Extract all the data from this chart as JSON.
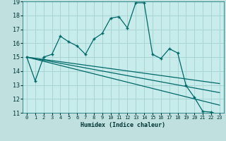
{
  "xlabel": "Humidex (Indice chaleur)",
  "bg_color": "#c0e0e0",
  "plot_bg_color": "#c8ecec",
  "grid_color": "#a8d4d4",
  "line_color": "#006868",
  "xlim": [
    -0.5,
    23.5
  ],
  "ylim": [
    11,
    19
  ],
  "xticks": [
    0,
    1,
    2,
    3,
    4,
    5,
    6,
    7,
    8,
    9,
    10,
    11,
    12,
    13,
    14,
    15,
    16,
    17,
    18,
    19,
    20,
    21,
    22,
    23
  ],
  "yticks": [
    11,
    12,
    13,
    14,
    15,
    16,
    17,
    18,
    19
  ],
  "main_x": [
    0,
    1,
    2,
    3,
    4,
    5,
    6,
    7,
    8,
    9,
    10,
    11,
    12,
    13,
    14,
    15,
    16,
    17,
    18,
    19,
    20,
    21,
    22,
    23
  ],
  "main_y": [
    15.0,
    13.3,
    15.0,
    15.2,
    16.5,
    16.1,
    15.8,
    15.2,
    16.3,
    16.7,
    17.8,
    17.9,
    17.1,
    18.9,
    18.9,
    15.2,
    14.9,
    15.6,
    15.3,
    12.95,
    12.1,
    11.1,
    11.05,
    10.85
  ],
  "trend1_x": [
    0,
    23
  ],
  "trend1_y": [
    15.0,
    11.55
  ],
  "trend2_x": [
    0,
    23
  ],
  "trend2_y": [
    15.0,
    12.45
  ],
  "trend3_x": [
    0,
    23
  ],
  "trend3_y": [
    15.0,
    13.1
  ]
}
